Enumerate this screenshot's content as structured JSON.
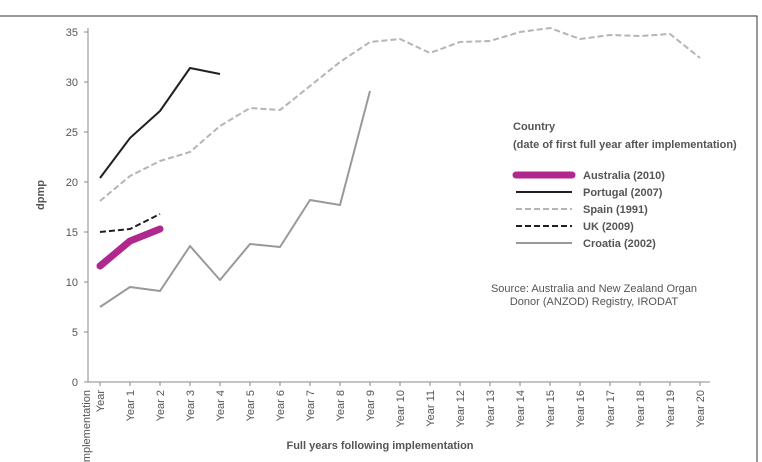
{
  "chart_data": {
    "type": "line",
    "y_label": "dpmp",
    "x_label": "Full years following implementation",
    "legend_title": [
      "Country",
      "(date of first full year after implementation)"
    ],
    "annotations": [
      "Source: Australia and New Zealand Organ",
      "Donor (ANZOD) Registry, IRODAT"
    ],
    "categories": [
      "Implementation Year",
      "Year 1",
      "Year 2",
      "Year 3",
      "Year 4",
      "Year 5",
      "Year 6",
      "Year 7",
      "Year 8",
      "Year 9",
      "Year 10",
      "Year 11",
      "Year 12",
      "Year 13",
      "Year 14",
      "Year 15",
      "Year 16",
      "Year 17",
      "Year 18",
      "Year 19",
      "Year 20"
    ],
    "ylim": [
      0,
      35
    ],
    "yticks": [
      0,
      5,
      10,
      15,
      20,
      25,
      30,
      35
    ],
    "legend": "right",
    "series": [
      {
        "name": "Australia (2010)",
        "color": "#b0278f",
        "line_width": 7,
        "dashed": false,
        "values": [
          11.6,
          14.1,
          15.3,
          null,
          null,
          null,
          null,
          null,
          null,
          null,
          null,
          null,
          null,
          null,
          null,
          null,
          null,
          null,
          null,
          null,
          null
        ]
      },
      {
        "name": "Portugal (2007)",
        "color": "#231f20",
        "line_width": 2,
        "dashed": false,
        "values": [
          20.4,
          24.4,
          27.1,
          31.4,
          30.8,
          null,
          null,
          null,
          null,
          null,
          null,
          null,
          null,
          null,
          null,
          null,
          null,
          null,
          null,
          null,
          null
        ]
      },
      {
        "name": "Spain (1991)",
        "color": "#b5b5b5",
        "line_width": 2,
        "dashed": true,
        "values": [
          18.1,
          20.6,
          22.1,
          23.0,
          25.6,
          27.4,
          27.2,
          29.6,
          32.0,
          34.0,
          34.3,
          32.9,
          34.0,
          34.1,
          35.0,
          35.4,
          34.3,
          34.7,
          34.6,
          34.8,
          32.4
        ]
      },
      {
        "name": "UK (2009)",
        "color": "#231f20",
        "line_width": 2,
        "dashed": true,
        "values": [
          15.0,
          15.3,
          16.8,
          null,
          null,
          null,
          null,
          null,
          null,
          null,
          null,
          null,
          null,
          null,
          null,
          null,
          null,
          null,
          null,
          null,
          null
        ]
      },
      {
        "name": "Croatia (2002)",
        "color": "#999999",
        "line_width": 2,
        "dashed": false,
        "values": [
          7.5,
          9.5,
          9.1,
          13.6,
          10.2,
          13.8,
          13.5,
          18.2,
          17.7,
          29.1,
          null,
          null,
          null,
          null,
          null,
          null,
          null,
          null,
          null,
          null,
          null
        ]
      }
    ]
  }
}
